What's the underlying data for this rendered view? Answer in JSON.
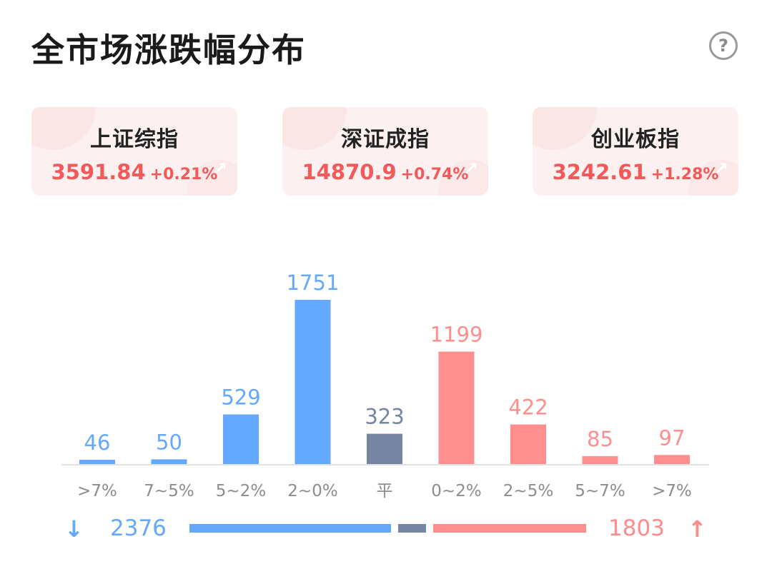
{
  "header": {
    "title": "全市场涨跌幅分布",
    "help_icon": "?"
  },
  "indices": [
    {
      "name": "上证综指",
      "value": "3591.84",
      "change": "+0.21%"
    },
    {
      "name": "深证成指",
      "value": "14870.9",
      "change": "+0.74%"
    },
    {
      "name": "创业板指",
      "value": "3242.61",
      "change": "+1.28%"
    }
  ],
  "colors": {
    "down": "#64a8ff",
    "flat": "#7585a2",
    "up": "#ff8e8e",
    "axis": "#e2e2e2",
    "tick": "#8d8d8d"
  },
  "chart_data": {
    "type": "bar",
    "categories": [
      ">7%",
      "7~5%",
      "5~2%",
      "2~0%",
      "平",
      "0~2%",
      "2~5%",
      "5~7%",
      ">7%"
    ],
    "values": [
      46,
      50,
      529,
      1751,
      323,
      1199,
      422,
      85,
      97
    ],
    "groups": [
      "down",
      "down",
      "down",
      "down",
      "flat",
      "up",
      "up",
      "up",
      "up"
    ],
    "ylim": [
      0,
      1751
    ]
  },
  "summary": {
    "down_total": "2376",
    "up_total": "1803",
    "down_count": 2376,
    "flat_count": 323,
    "up_count": 1803
  }
}
